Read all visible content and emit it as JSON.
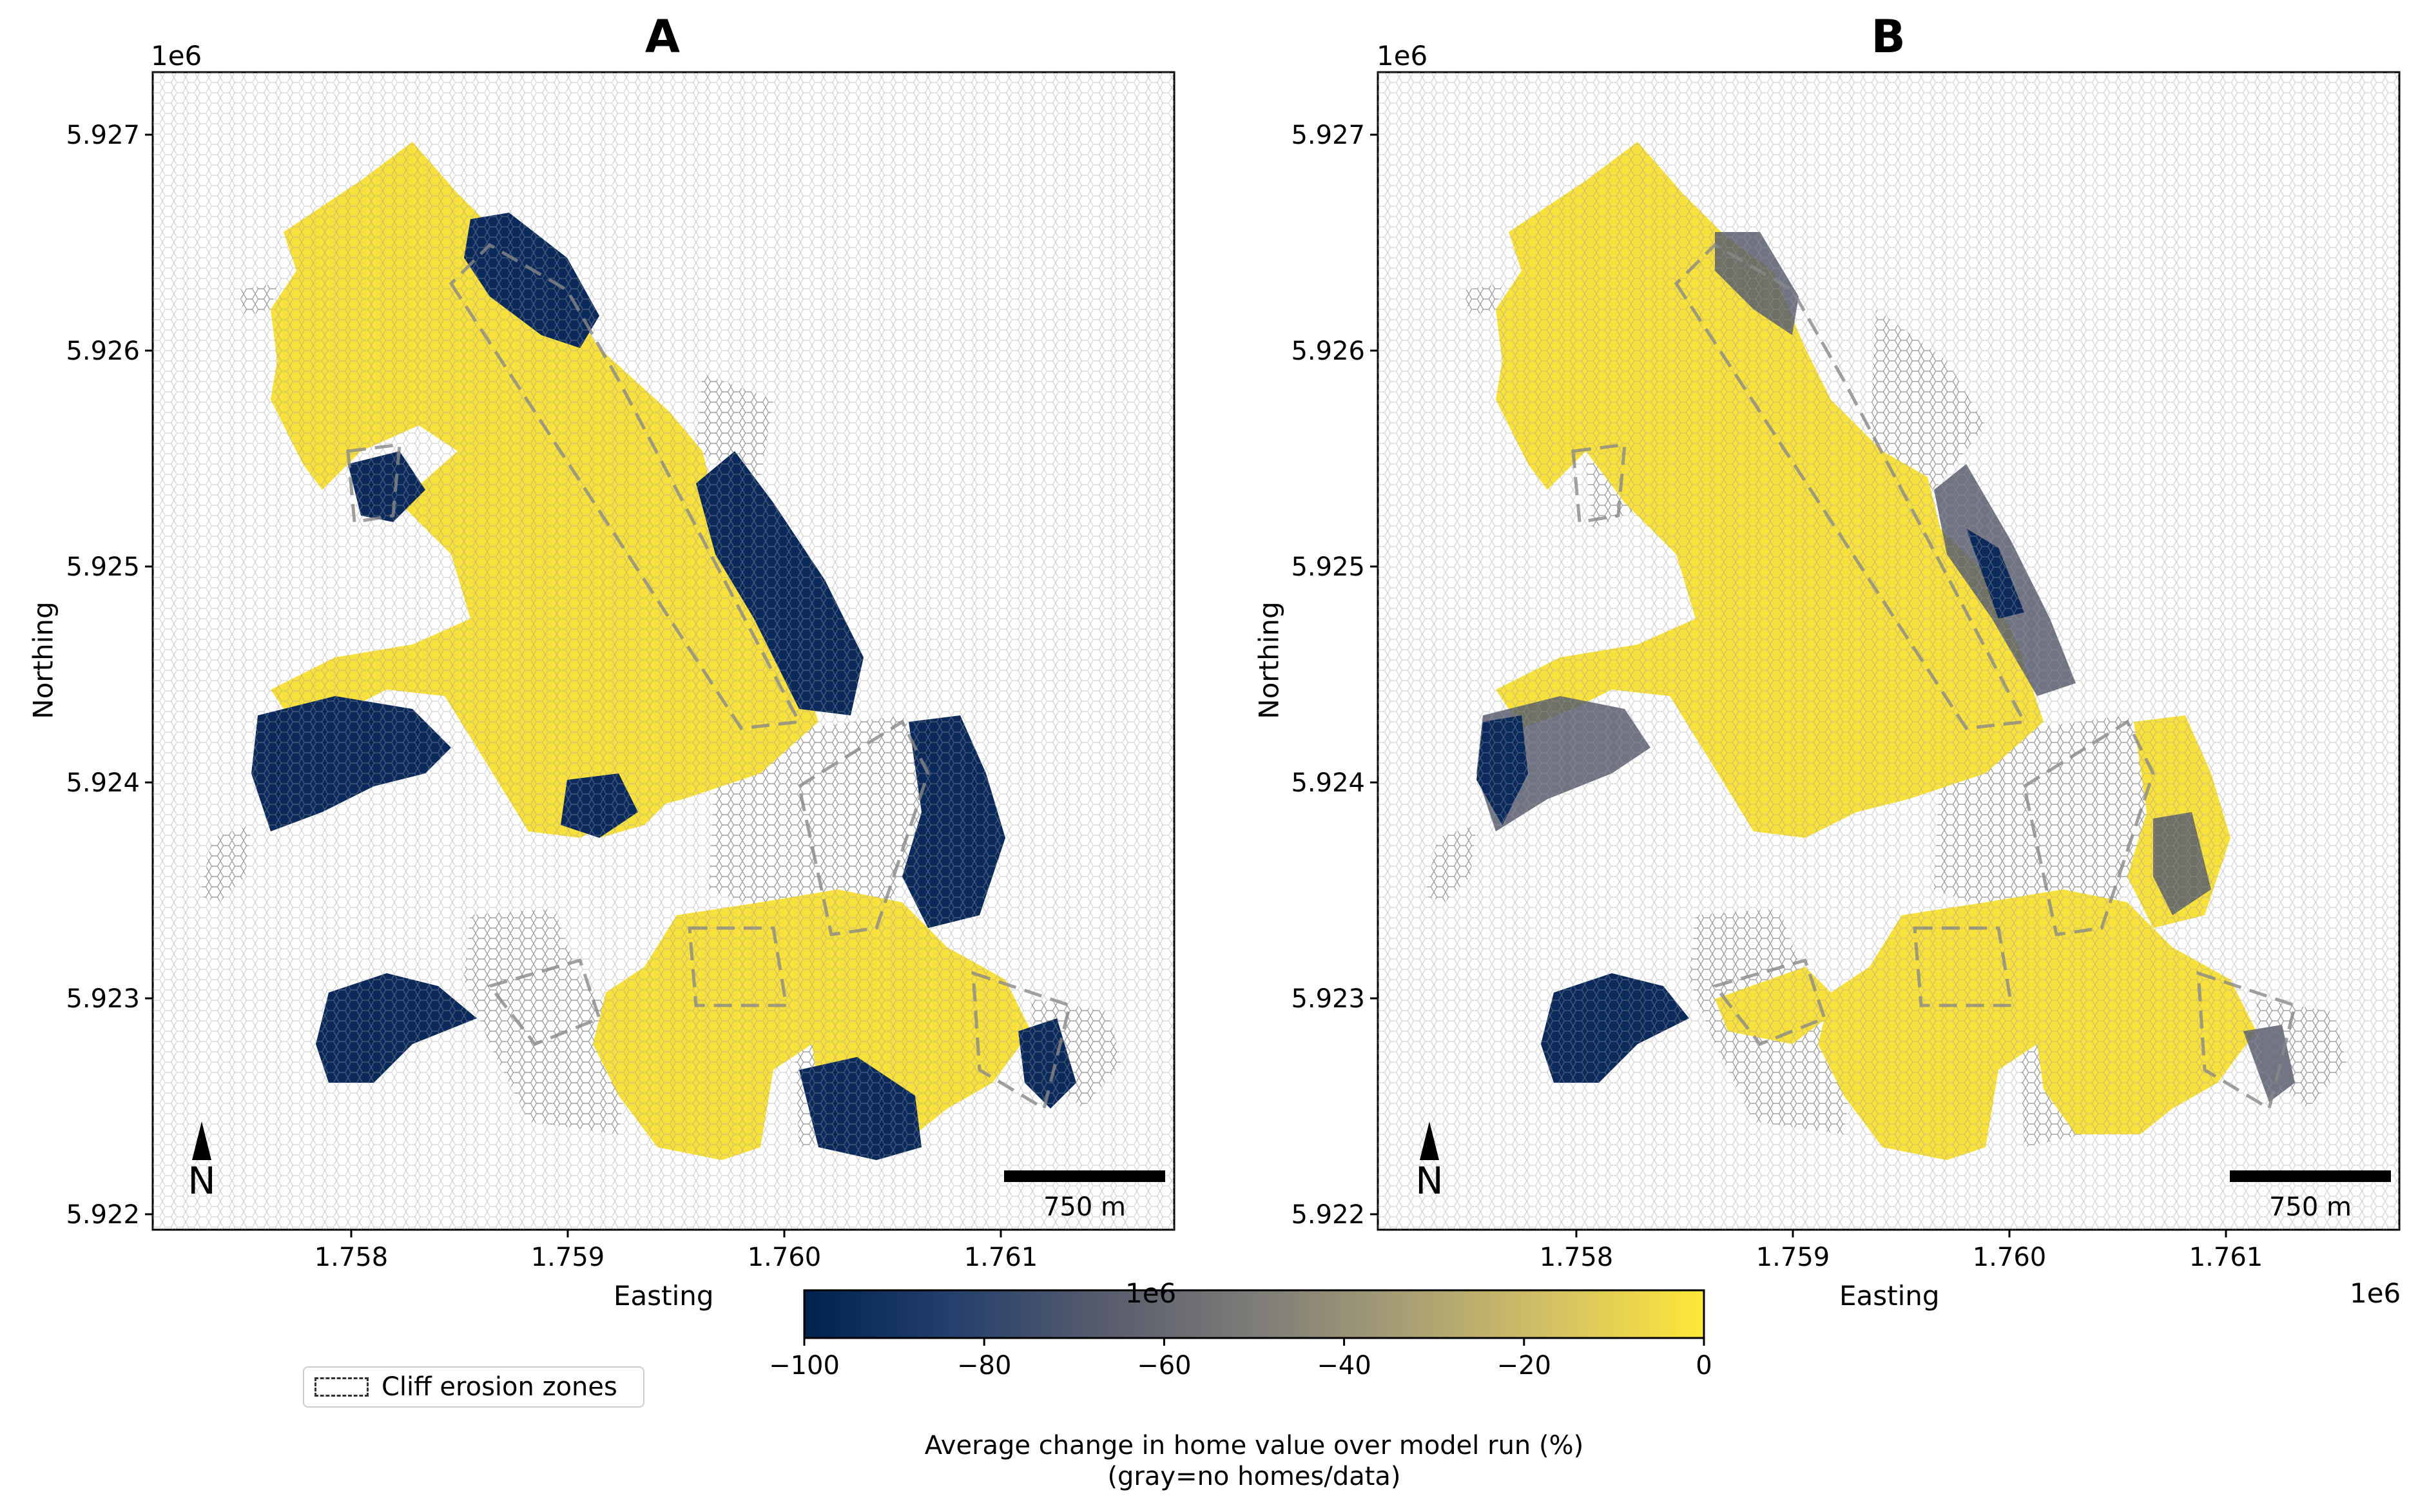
{
  "panels": [
    {
      "id": "A",
      "title": "A",
      "xlabel": "Easting",
      "ylabel": "Northing",
      "x_offset_label": "1e6",
      "y_offset_label": "1e6",
      "x_ticks": [
        "1.758",
        "1.759",
        "1.760",
        "1.761"
      ],
      "y_ticks": [
        "5.922",
        "5.923",
        "5.924",
        "5.925",
        "5.926",
        "5.927"
      ],
      "north_arrow_label": "N",
      "scale_bar_label": "750 m"
    },
    {
      "id": "B",
      "title": "B",
      "xlabel": "Easting",
      "ylabel": "Northing",
      "x_offset_label": "1e6",
      "y_offset_label": "1e6",
      "x_ticks": [
        "1.758",
        "1.759",
        "1.760",
        "1.761"
      ],
      "y_ticks": [
        "5.922",
        "5.923",
        "5.924",
        "5.925",
        "5.926",
        "5.927"
      ],
      "north_arrow_label": "N",
      "scale_bar_label": "750 m"
    }
  ],
  "legend": {
    "label": "Cliff erosion zones"
  },
  "colorbar": {
    "ticks": [
      "−100",
      "−80",
      "−60",
      "−40",
      "−20",
      "0"
    ],
    "label_line1": "Average change in home value over model run (%)",
    "label_line2": "(gray=no homes/data)",
    "colors": [
      "#00224e",
      "#233f6c",
      "#575c6d",
      "#7d7c78",
      "#a69d75",
      "#d3c164",
      "#fee838"
    ]
  },
  "map_colors": {
    "yellow": "#f8e13c",
    "navy": "#0b2a5c",
    "gray_cell": "#ffffff",
    "zone_line": "#888888"
  }
}
